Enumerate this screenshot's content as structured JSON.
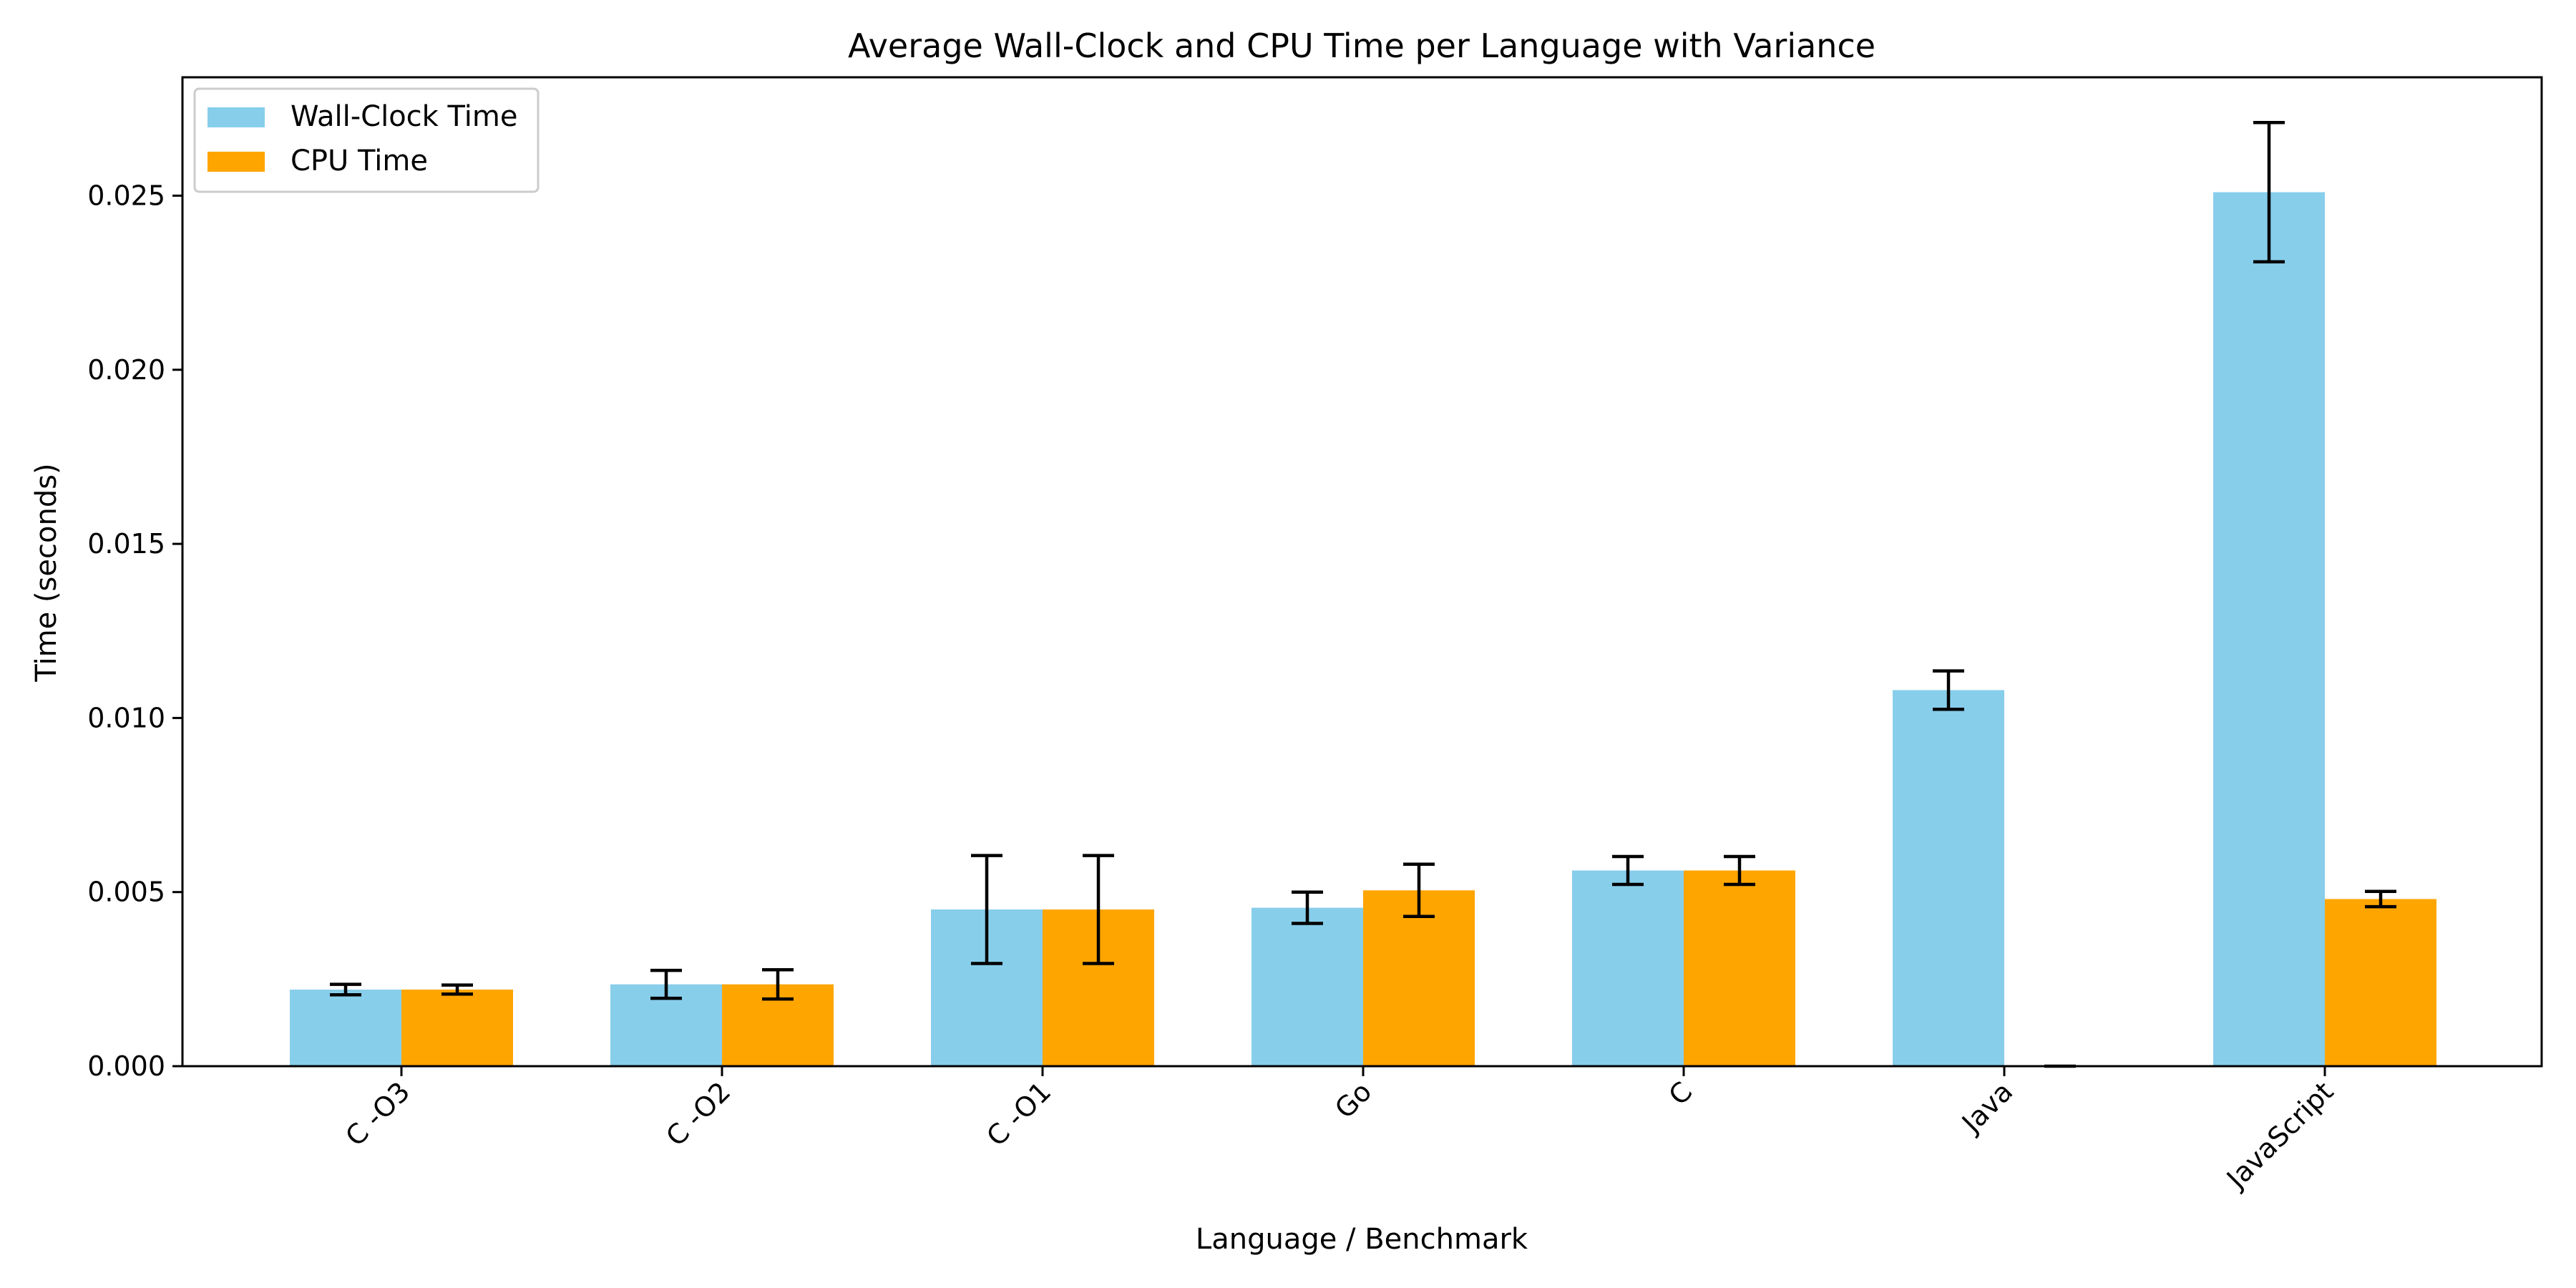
{
  "chart_data": {
    "type": "bar",
    "title": "Average Wall-Clock and CPU Time per Language with Variance",
    "xlabel": "Language / Benchmark",
    "ylabel": "Time (seconds)",
    "categories": [
      "C -O3",
      "C -O2",
      "C -O1",
      "Go",
      "C",
      "Java",
      "JavaScript"
    ],
    "series": [
      {
        "name": "Wall-Clock Time",
        "color": "#87CEEB",
        "values": [
          0.0022,
          0.00235,
          0.0045,
          0.00455,
          0.00562,
          0.0108,
          0.0251
        ],
        "errors": [
          0.00015,
          0.0004,
          0.00155,
          0.00045,
          0.0004,
          0.00055,
          0.002
        ]
      },
      {
        "name": "CPU Time",
        "color": "#FFA500",
        "values": [
          0.0022,
          0.00235,
          0.0045,
          0.00505,
          0.00562,
          0.0,
          0.0048
        ],
        "errors": [
          0.00013,
          0.00042,
          0.00155,
          0.00075,
          0.0004,
          0.0,
          0.00022
        ]
      }
    ],
    "ylim": [
      0,
      0.0284
    ],
    "yticks": [
      "0.000",
      "0.005",
      "0.010",
      "0.015",
      "0.020",
      "0.025"
    ],
    "ytick_values": [
      0,
      0.005,
      0.01,
      0.015,
      0.02,
      0.025
    ],
    "legend_position": "upper-left",
    "grid": false
  }
}
